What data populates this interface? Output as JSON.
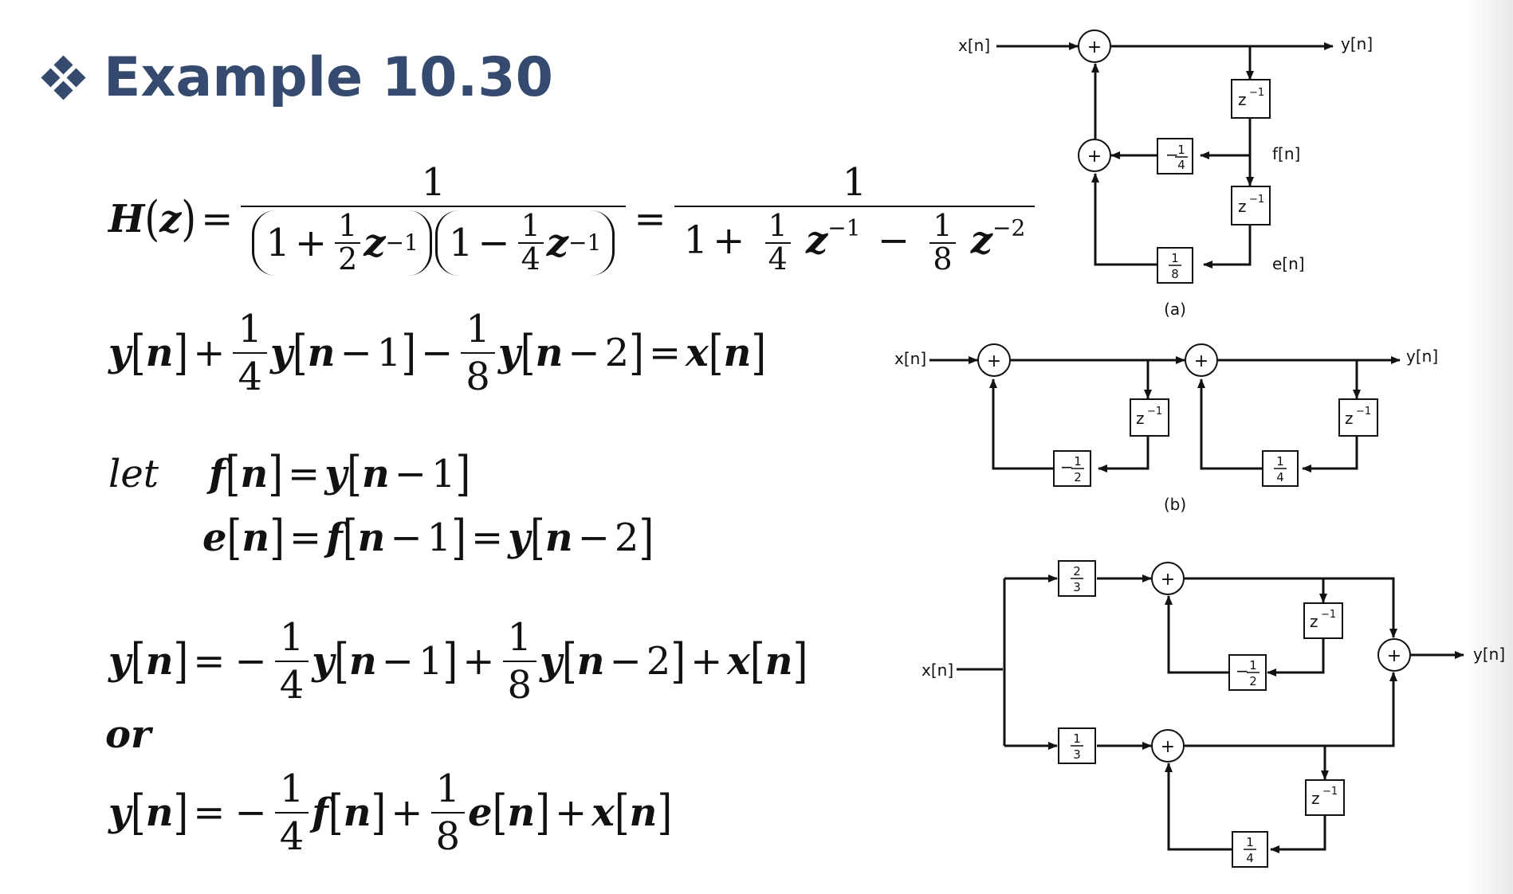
{
  "title": "Example 10.30",
  "equations": {
    "transfer_lhs": "H",
    "transfer_var": "z",
    "one": "1",
    "two": "2",
    "four": "4",
    "eight": "8",
    "plus": "+",
    "minus": "−",
    "neg_one_exp": "−1",
    "neg_two_exp": "−2",
    "let_word": "let",
    "or_word": "or"
  },
  "diagram_labels": {
    "x_in": "x[n]",
    "y_out": "y[n]",
    "f_n": "f[n]",
    "e_n": "e[n]",
    "caption_a": "(a)",
    "caption_b": "(b)",
    "delay_base": "z",
    "delay_exp": "−1",
    "adder_symbol": "+",
    "coef_minus_quarter_num": "1",
    "coef_minus_quarter_den": "4",
    "coef_eighth_num": "1",
    "coef_eighth_den": "8",
    "coef_minus_half_num": "1",
    "coef_minus_half_den": "2",
    "coef_quarter_num": "1",
    "coef_quarter_den": "4",
    "coef_two_thirds_num": "2",
    "coef_two_thirds_den": "3",
    "coef_third_num": "1",
    "coef_third_den": "3",
    "minus_sign": "−"
  }
}
